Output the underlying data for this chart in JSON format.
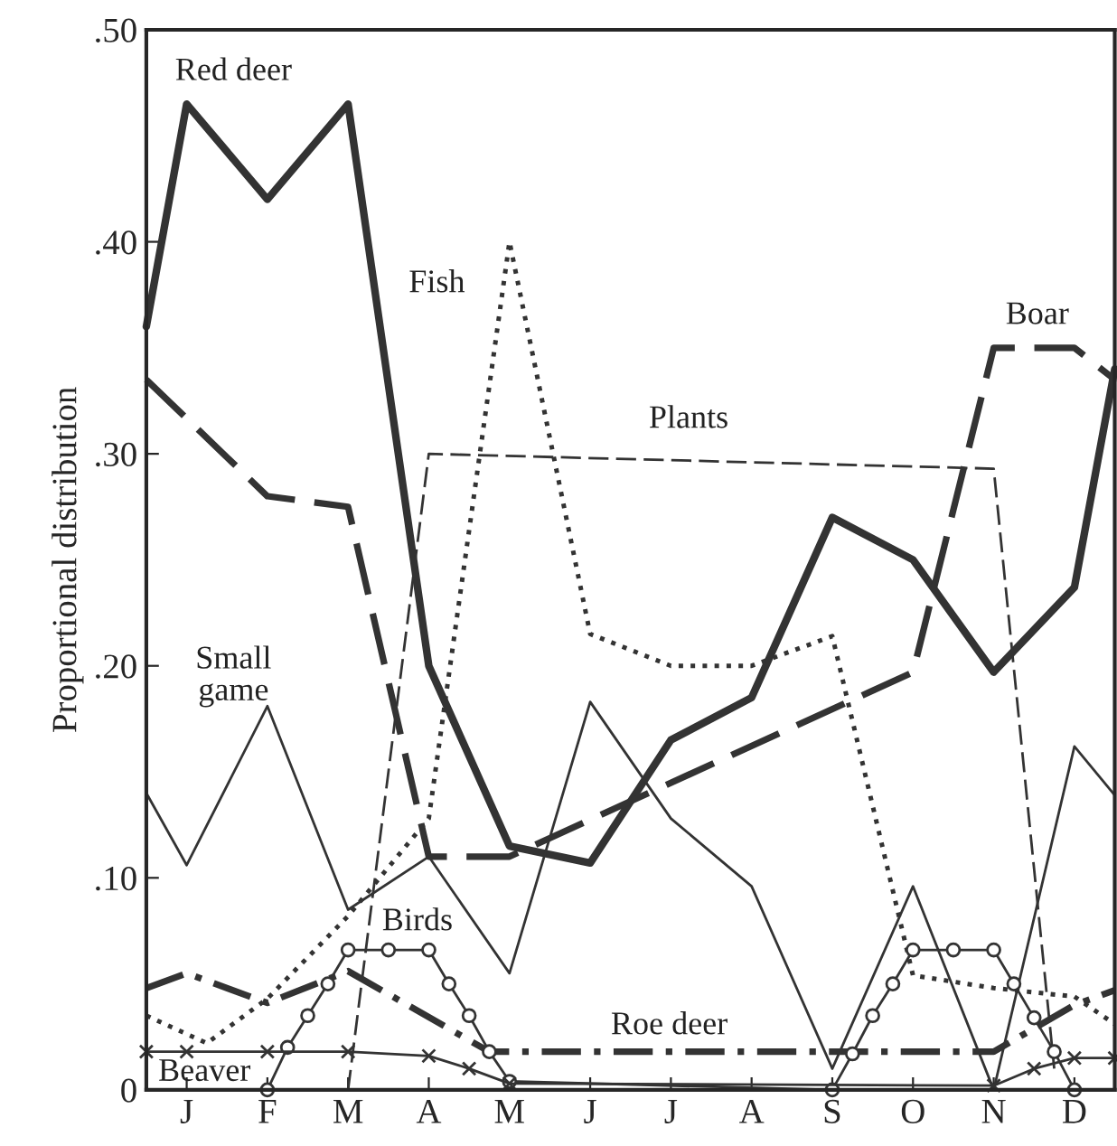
{
  "chart_data": {
    "type": "line",
    "ylabel": "Proportional distribution",
    "categories": [
      null,
      null,
      "J",
      null,
      null,
      null,
      "F",
      null,
      null,
      null,
      "M",
      null,
      null,
      null,
      "A",
      null,
      null,
      null,
      "M",
      null,
      null,
      null,
      "J",
      null,
      null,
      null,
      "J",
      null,
      null,
      null,
      "A",
      null,
      null,
      null,
      "S",
      null,
      null,
      null,
      "O",
      null,
      null,
      null,
      "N",
      null,
      null,
      null,
      "D",
      null,
      null
    ],
    "ylim": [
      0,
      0.5
    ],
    "yticks": [
      {
        "value": 0,
        "label": "0"
      },
      {
        "value": 0.1,
        "label": ".10"
      },
      {
        "value": 0.2,
        "label": ".20"
      },
      {
        "value": 0.3,
        "label": ".30"
      },
      {
        "value": 0.4,
        "label": ".40"
      },
      {
        "value": 0.5,
        "label": ".50"
      }
    ],
    "series": [
      {
        "name": "Red deer",
        "color": "#333333",
        "line_style": "solid",
        "values": [
          0.36,
          null,
          0.465,
          null,
          null,
          null,
          0.42,
          null,
          null,
          null,
          0.465,
          null,
          null,
          null,
          0.2,
          null,
          null,
          null,
          0.115,
          null,
          null,
          null,
          0.107,
          null,
          null,
          null,
          0.165,
          null,
          null,
          null,
          0.185,
          null,
          null,
          null,
          0.27,
          null,
          null,
          null,
          0.25,
          null,
          null,
          null,
          0.197,
          null,
          null,
          null,
          0.237,
          null,
          0.34
        ]
      },
      {
        "name": "Boar",
        "color": "#333333",
        "line_style": "dashed",
        "values": [
          0.335,
          null,
          null,
          null,
          null,
          null,
          0.28,
          null,
          null,
          null,
          0.275,
          null,
          null,
          null,
          0.11,
          null,
          null,
          null,
          0.11,
          null,
          null,
          null,
          null,
          null,
          null,
          null,
          null,
          null,
          null,
          null,
          null,
          null,
          null,
          null,
          null,
          null,
          null,
          null,
          0.197,
          null,
          null,
          null,
          0.35,
          null,
          null,
          null,
          0.35,
          null,
          0.335
        ]
      },
      {
        "name": "Plants",
        "color": "#333333",
        "line_style": "dashed",
        "values": [
          null,
          null,
          null,
          null,
          null,
          null,
          null,
          null,
          null,
          null,
          0,
          null,
          null,
          null,
          0.3,
          null,
          null,
          null,
          null,
          null,
          null,
          null,
          null,
          null,
          null,
          null,
          null,
          null,
          null,
          null,
          null,
          null,
          null,
          null,
          null,
          null,
          null,
          null,
          null,
          null,
          null,
          null,
          0.293,
          null,
          null,
          0.01,
          null,
          null,
          null
        ]
      },
      {
        "name": "Fish",
        "color": "#333333",
        "line_style": "dotted",
        "values": [
          0.035,
          null,
          null,
          0.022,
          null,
          null,
          0.043,
          null,
          null,
          null,
          0.082,
          null,
          null,
          null,
          0.128,
          null,
          null,
          null,
          0.4,
          null,
          null,
          null,
          0.215,
          null,
          null,
          null,
          0.2,
          null,
          null,
          null,
          0.2,
          null,
          null,
          null,
          0.214,
          null,
          null,
          null,
          0.054,
          null,
          null,
          null,
          0.048,
          null,
          null,
          null,
          0.044,
          null,
          0.031
        ]
      },
      {
        "name": "Small\ngame",
        "color": "#333333",
        "line_style": "solid",
        "values": [
          0.14,
          null,
          0.106,
          null,
          null,
          null,
          0.181,
          null,
          null,
          null,
          0.085,
          null,
          null,
          null,
          0.11,
          null,
          null,
          null,
          0.055,
          null,
          null,
          null,
          0.183,
          null,
          null,
          null,
          0.128,
          null,
          null,
          null,
          0.096,
          null,
          null,
          null,
          0.01,
          null,
          null,
          null,
          0.096,
          null,
          null,
          null,
          0,
          null,
          null,
          null,
          0.162,
          null,
          0.139
        ]
      },
      {
        "name": "Roe deer",
        "color": "#333333",
        "line_style": "dashdot",
        "values": [
          0.048,
          null,
          0.055,
          null,
          null,
          null,
          0.041,
          null,
          null,
          null,
          0.056,
          null,
          null,
          null,
          null,
          null,
          null,
          0.018,
          null,
          null,
          null,
          null,
          null,
          null,
          null,
          null,
          null,
          null,
          null,
          null,
          null,
          null,
          null,
          null,
          null,
          null,
          null,
          null,
          null,
          null,
          null,
          null,
          0.018,
          null,
          null,
          null,
          0.04,
          null,
          0.047
        ]
      },
      {
        "name": "Birds",
        "color": "#333333",
        "line_style": "solid",
        "marker": "circle",
        "values": [
          null,
          null,
          null,
          null,
          null,
          null,
          0,
          0.02,
          0.035,
          0.05,
          0.066,
          null,
          0.066,
          null,
          0.066,
          0.05,
          0.035,
          0.018,
          0.004,
          null,
          null,
          null,
          null,
          null,
          null,
          null,
          null,
          null,
          null,
          null,
          null,
          null,
          null,
          null,
          0,
          0.017,
          0.035,
          0.05,
          0.066,
          null,
          0.066,
          null,
          0.066,
          0.05,
          0.034,
          0.018,
          0,
          null,
          null
        ]
      },
      {
        "name": "Beaver",
        "color": "#333333",
        "line_style": "solid",
        "marker": "cross",
        "values": [
          0.018,
          null,
          0.018,
          null,
          null,
          null,
          0.018,
          null,
          null,
          null,
          0.018,
          null,
          null,
          null,
          0.016,
          null,
          0.01,
          null,
          0.003,
          null,
          null,
          null,
          null,
          null,
          null,
          null,
          null,
          null,
          null,
          null,
          null,
          null,
          null,
          null,
          null,
          null,
          null,
          null,
          null,
          null,
          null,
          null,
          0.002,
          null,
          0.01,
          null,
          0.015,
          null,
          0.015
        ]
      }
    ]
  }
}
